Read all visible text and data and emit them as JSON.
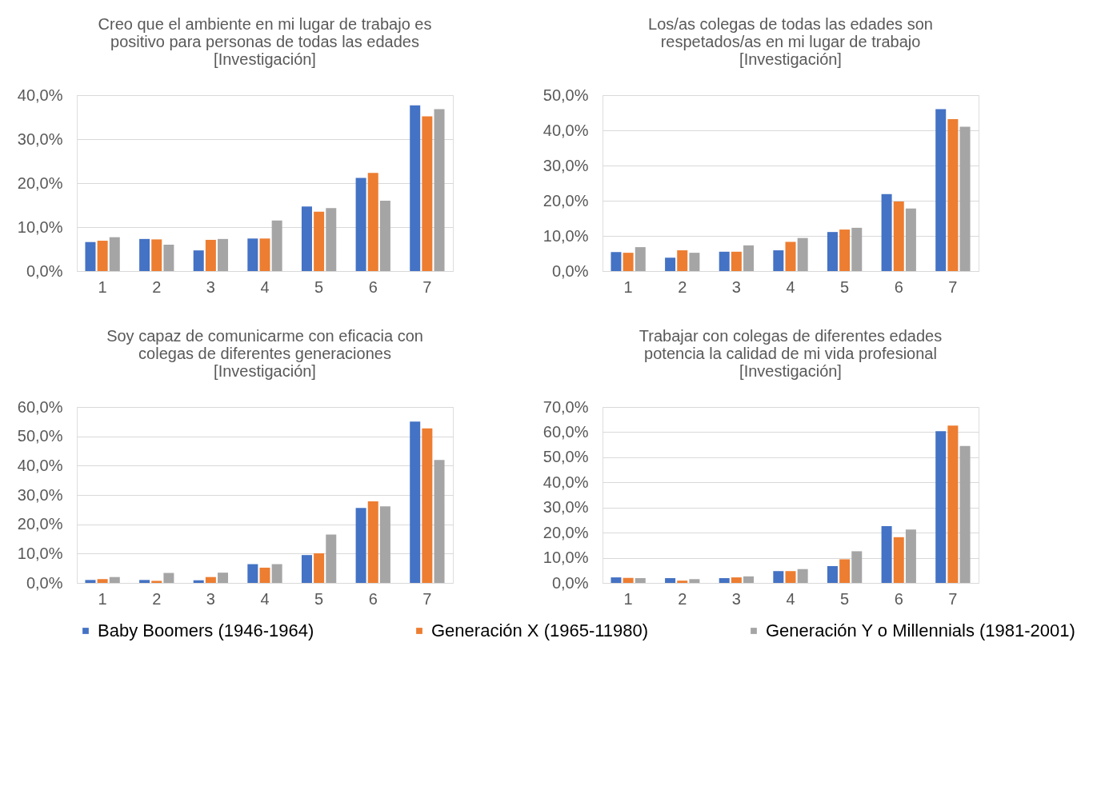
{
  "chart_data": [
    {
      "type": "bar",
      "title": "Creo que el ambiente en mi lugar de trabajo es\npositivo para personas de todas las edades\n[Investigación]",
      "categories": [
        "1",
        "2",
        "3",
        "4",
        "5",
        "6",
        "7"
      ],
      "ylim": [
        0,
        40
      ],
      "yticks": [
        {
          "value": 0,
          "label": "0,0%"
        },
        {
          "value": 10,
          "label": "10,0%"
        },
        {
          "value": 20,
          "label": "20,0%"
        },
        {
          "value": 30,
          "label": "30,0%"
        },
        {
          "value": 40,
          "label": "40,0%"
        }
      ],
      "grid": "y",
      "legend": "bottom",
      "series": [
        {
          "name": "Baby Boomers (1946-1964)",
          "color": "#4472c4",
          "values": [
            6.6,
            7.3,
            4.7,
            7.4,
            14.7,
            21.2,
            37.7
          ]
        },
        {
          "name": "Generación X (1965-11980)",
          "color": "#ed7d31",
          "values": [
            6.9,
            7.2,
            7.1,
            7.4,
            13.5,
            22.3,
            35.2
          ]
        },
        {
          "name": "Generación Y o Millennials (1981-2001)",
          "color": "#a5a5a5",
          "values": [
            7.7,
            6.0,
            7.3,
            11.5,
            14.3,
            16.0,
            36.8
          ]
        }
      ]
    },
    {
      "type": "bar",
      "title": "Los/as colegas de todas las edades son\nrespetados/as en mi lugar de trabajo\n[Investigación]",
      "categories": [
        "1",
        "2",
        "3",
        "4",
        "5",
        "6",
        "7"
      ],
      "ylim": [
        0,
        50
      ],
      "yticks": [
        {
          "value": 0,
          "label": "0,0%"
        },
        {
          "value": 10,
          "label": "10,0%"
        },
        {
          "value": 20,
          "label": "20,0%"
        },
        {
          "value": 30,
          "label": "30,0%"
        },
        {
          "value": 40,
          "label": "40,0%"
        },
        {
          "value": 50,
          "label": "50,0%"
        }
      ],
      "grid": "y",
      "legend": "bottom",
      "series": [
        {
          "name": "Baby Boomers (1946-1964)",
          "color": "#4472c4",
          "values": [
            5.4,
            3.8,
            5.5,
            5.9,
            11.1,
            21.9,
            46.0
          ]
        },
        {
          "name": "Generación X (1965-11980)",
          "color": "#ed7d31",
          "values": [
            5.2,
            5.9,
            5.5,
            8.3,
            11.8,
            19.8,
            43.2
          ]
        },
        {
          "name": "Generación Y o Millennials (1981-2001)",
          "color": "#a5a5a5",
          "values": [
            6.8,
            5.2,
            7.3,
            9.4,
            12.3,
            17.8,
            41.0
          ]
        }
      ]
    },
    {
      "type": "bar",
      "title": "Soy capaz de comunicarme con eficacia con\ncolegas de diferentes generaciones\n[Investigación]",
      "categories": [
        "1",
        "2",
        "3",
        "4",
        "5",
        "6",
        "7"
      ],
      "ylim": [
        0,
        60
      ],
      "yticks": [
        {
          "value": 0,
          "label": "0,0%"
        },
        {
          "value": 10,
          "label": "10,0%"
        },
        {
          "value": 20,
          "label": "20,0%"
        },
        {
          "value": 30,
          "label": "30,0%"
        },
        {
          "value": 40,
          "label": "40,0%"
        },
        {
          "value": 50,
          "label": "50,0%"
        },
        {
          "value": 60,
          "label": "60,0%"
        }
      ],
      "grid": "y",
      "legend": "bottom",
      "series": [
        {
          "name": "Baby Boomers (1946-1964)",
          "color": "#4472c4",
          "values": [
            1.0,
            1.0,
            0.9,
            6.4,
            9.5,
            25.6,
            55.0
          ]
        },
        {
          "name": "Generación X (1965-11980)",
          "color": "#ed7d31",
          "values": [
            1.3,
            0.7,
            2.0,
            5.2,
            10.1,
            27.8,
            52.7
          ]
        },
        {
          "name": "Generación Y o Millennials (1981-2001)",
          "color": "#a5a5a5",
          "values": [
            2.0,
            3.4,
            3.5,
            6.4,
            16.5,
            26.1,
            41.9
          ]
        }
      ]
    },
    {
      "type": "bar",
      "title": "Trabajar con colegas de diferentes edades\npotencia la calidad de mi vida profesional\n[Investigación]",
      "categories": [
        "1",
        "2",
        "3",
        "4",
        "5",
        "6",
        "7"
      ],
      "ylim": [
        0,
        70
      ],
      "yticks": [
        {
          "value": 0,
          "label": "0,0%"
        },
        {
          "value": 10,
          "label": "10,0%"
        },
        {
          "value": 20,
          "label": "20,0%"
        },
        {
          "value": 30,
          "label": "30,0%"
        },
        {
          "value": 40,
          "label": "40,0%"
        },
        {
          "value": 50,
          "label": "50,0%"
        },
        {
          "value": 60,
          "label": "60,0%"
        },
        {
          "value": 70,
          "label": "70,0%"
        }
      ],
      "grid": "y",
      "legend": "bottom",
      "series": [
        {
          "name": "Baby Boomers (1946-1964)",
          "color": "#4472c4",
          "values": [
            2.2,
            1.9,
            1.9,
            4.7,
            6.7,
            22.6,
            60.4
          ]
        },
        {
          "name": "Generación X (1965-11980)",
          "color": "#ed7d31",
          "values": [
            2.0,
            0.9,
            2.2,
            4.7,
            9.4,
            18.2,
            62.6
          ]
        },
        {
          "name": "Generación Y o Millennials (1981-2001)",
          "color": "#a5a5a5",
          "values": [
            1.9,
            1.5,
            2.6,
            5.5,
            12.6,
            21.2,
            54.5
          ]
        }
      ]
    }
  ]
}
